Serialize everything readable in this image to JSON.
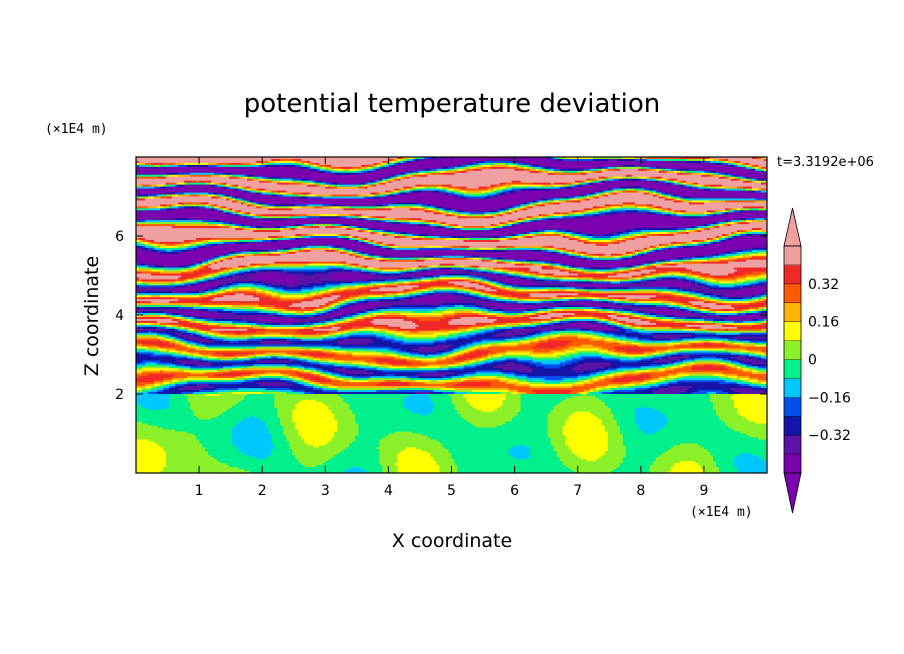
{
  "chart_data": {
    "type": "heatmap",
    "title": "potential temperature deviation",
    "xlabel": "X coordinate",
    "ylabel": "Z coordinate",
    "x_unit": "(×1E4 m)",
    "y_unit": "(×1E4 m)",
    "time_label": "t=3.3192e+06",
    "xlim": [
      0,
      10
    ],
    "ylim": [
      0,
      8
    ],
    "x_ticks": [
      "1",
      "2",
      "3",
      "4",
      "5",
      "6",
      "7",
      "8",
      "9"
    ],
    "y_ticks": [
      "2",
      "4",
      "6"
    ],
    "inversion_height": 2,
    "colorbar": {
      "levels": [
        -0.48,
        -0.4,
        -0.32,
        -0.24,
        -0.16,
        -0.08,
        0,
        0.08,
        0.16,
        0.24,
        0.32,
        0.4,
        0.48
      ],
      "colors": [
        "#7a00b0",
        "#5a13a6",
        "#1414a8",
        "#0050f0",
        "#00c8ff",
        "#00f08c",
        "#8cf028",
        "#ffff00",
        "#ffb400",
        "#ff5a00",
        "#f02828",
        "#f0a0a0"
      ],
      "tick_labels": [
        "0.32",
        "0.16",
        "0",
        "−0.16",
        "−0.32"
      ],
      "tick_values": [
        0.32,
        0.16,
        0,
        -0.16,
        -0.32
      ],
      "extend": "both"
    }
  }
}
